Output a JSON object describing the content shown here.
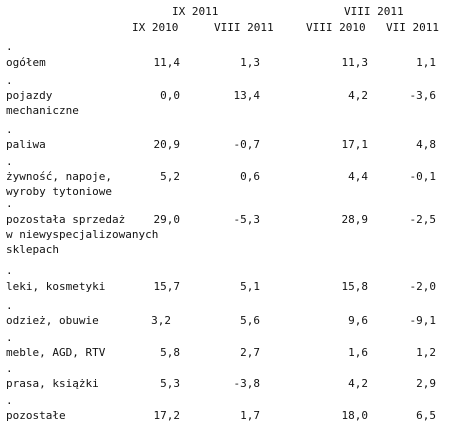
{
  "header": {
    "group1": "IX 2011",
    "group2": "VIII 2011",
    "cols": [
      "IX 2010",
      "VIII 2011",
      "VIII 2010",
      "VII 2011"
    ]
  },
  "rows": [
    {
      "label": "ogółem",
      "v": [
        "11,4",
        "1,3",
        "11,3",
        "1,1"
      ]
    },
    {
      "label": "pojazdy\nmechaniczne",
      "v": [
        "0,0",
        "13,4",
        "4,2",
        "-3,6"
      ]
    },
    {
      "label": "paliwa",
      "v": [
        "20,9",
        "-0,7",
        "17,1",
        "4,8"
      ]
    },
    {
      "label": "żywność, napoje,\nwyroby tytoniowe",
      "v": [
        "5,2",
        "0,6",
        "4,4",
        "-0,1"
      ]
    },
    {
      "label": "pozostała sprzedaż\nw niewyspecjalizowanych\nsklepach",
      "v": [
        "29,0",
        "-5,3",
        "28,9",
        "-2,5"
      ]
    },
    {
      "label": "leki, kosmetyki",
      "v": [
        "15,7",
        "5,1",
        "15,8",
        "-2,0"
      ]
    },
    {
      "label": "odzież, obuwie",
      "v": [
        "3,2",
        "5,6",
        "9,6",
        "-9,1"
      ]
    },
    {
      "label": "meble, AGD, RTV",
      "v": [
        "5,8",
        "2,7",
        "1,6",
        "1,2"
      ]
    },
    {
      "label": "prasa, książki",
      "v": [
        "5,3",
        "-3,8",
        "4,2",
        "2,9"
      ]
    },
    {
      "label": "pozostałe",
      "v": [
        "17,2",
        "1,7",
        "18,0",
        "6,5"
      ]
    }
  ]
}
